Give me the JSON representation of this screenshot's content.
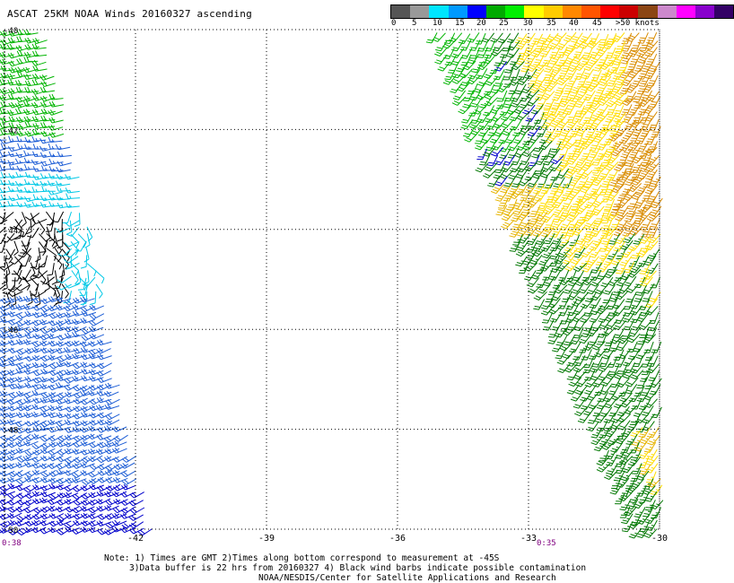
{
  "title": "ASCAT 25KM NOAA Winds 20160327 ascending",
  "legend": {
    "labels": [
      "0",
      "5",
      "10",
      "15",
      "20",
      "25",
      "30",
      "35",
      "40",
      "45",
      ">50 knots"
    ],
    "colors": [
      "#555555",
      "#999999",
      "#00e5ff",
      "#0099ff",
      "#0000ff",
      "#00aa00",
      "#00ee00",
      "#ffff00",
      "#ffcc00",
      "#ff8800",
      "#ff5500",
      "#ff0000",
      "#cc0000",
      "#8b4513",
      "#cc88cc",
      "#ff00ff",
      "#8800cc",
      "#330066"
    ]
  },
  "map": {
    "lat_labels": [
      "-40",
      "-42",
      "-44",
      "-46",
      "-48",
      "-50"
    ],
    "lon_labels": [
      "-42",
      "-39",
      "-36",
      "-33",
      "-30"
    ],
    "lat_range": [
      -50,
      -40
    ],
    "lon_range": [
      -45,
      -30
    ],
    "swath_times": [
      "0:38",
      "0:35"
    ],
    "barb_colors": {
      "calm": "#000000",
      "light_blue": "#00c8e6",
      "blue": "#1f5fd6",
      "dark_blue": "#0000cc",
      "green": "#00b400",
      "dark_green": "#007700",
      "yellow": "#ffdd00",
      "gold": "#e6b400",
      "orange": "#d98c00"
    }
  },
  "notes": {
    "line1": "Note: 1) Times are GMT 2)Times along bottom correspond to measurement at -45S",
    "line2": "3)Data buffer is 22 hrs from 20160327 4) Black wind barbs indicate possible contamination",
    "line3": "NOAA/NESDIS/Center for Satellite Applications and Research"
  }
}
